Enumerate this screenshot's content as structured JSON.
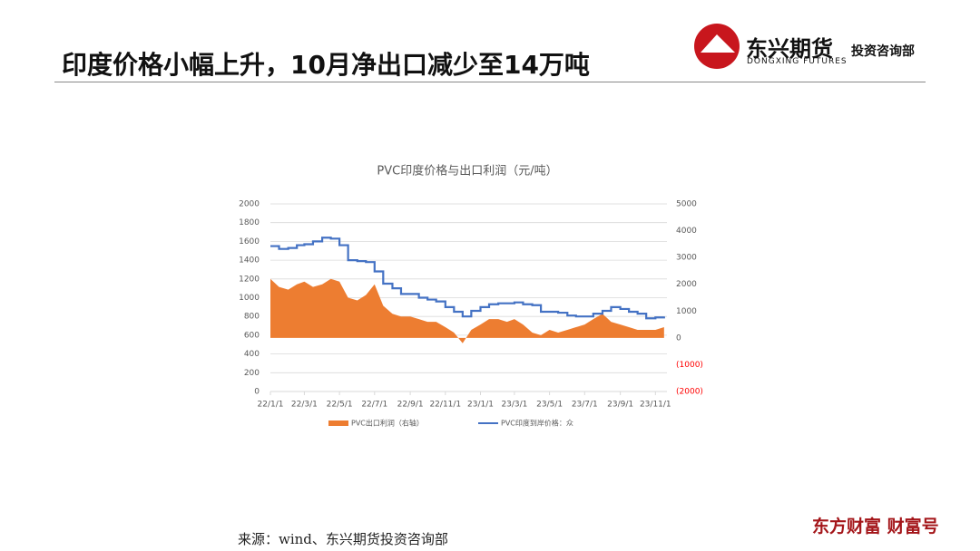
{
  "header": {
    "title": "印度价格小幅上升，10月净出口减少至14万吨",
    "logo_name": "东兴期货",
    "logo_en": "DONGXING FUTURES",
    "department": "投资咨询部"
  },
  "footer": {
    "source": "来源：wind、东兴期货投资咨询部",
    "watermark": "东方财富 财富号"
  },
  "chart_data": {
    "type": "line",
    "title": "PVC印度价格与出口利润（元/吨）",
    "x": [
      "22/1/1",
      "22/1/16",
      "22/2/1",
      "22/2/16",
      "22/3/1",
      "22/3/16",
      "22/4/1",
      "22/4/16",
      "22/5/1",
      "22/5/16",
      "22/6/1",
      "22/6/16",
      "22/7/1",
      "22/7/16",
      "22/8/1",
      "22/8/16",
      "22/9/1",
      "22/9/16",
      "22/10/1",
      "22/10/16",
      "22/11/1",
      "22/11/16",
      "22/12/1",
      "22/12/16",
      "23/1/1",
      "23/1/16",
      "23/2/1",
      "23/2/16",
      "23/3/1",
      "23/3/16",
      "23/4/1",
      "23/4/16",
      "23/5/1",
      "23/5/16",
      "23/6/1",
      "23/6/16",
      "23/7/1",
      "23/7/16",
      "23/8/1",
      "23/8/16",
      "23/9/1",
      "23/9/16",
      "23/10/1",
      "23/10/16",
      "23/11/1",
      "23/11/16"
    ],
    "xlim": [
      "22/1/1",
      "23/11/21"
    ],
    "xticks": [
      "22/1/1",
      "22/3/1",
      "22/5/1",
      "22/7/1",
      "22/9/1",
      "22/11/1",
      "23/1/1",
      "23/3/1",
      "23/5/1",
      "23/7/1",
      "23/9/1",
      "23/11/1"
    ],
    "ylim": [
      0,
      2000
    ],
    "yticks": [
      0,
      200,
      400,
      600,
      800,
      1000,
      1200,
      1400,
      1600,
      1800,
      2000
    ],
    "y2lim": [
      -2000,
      5000
    ],
    "y2ticks": [
      {
        "value": -2000,
        "label": "(2000)"
      },
      {
        "value": -1000,
        "label": "(1000)"
      },
      0,
      1000,
      2000,
      3000,
      4000,
      5000
    ],
    "negative_tick_color": "#ff0000",
    "grid": true,
    "series": [
      {
        "name": "PVC出口利润（右轴）",
        "color": "#ed7d31",
        "kind": "area",
        "axis": "y2",
        "values": [
          2200,
          1900,
          1800,
          2000,
          2100,
          1900,
          2000,
          2200,
          2100,
          1500,
          1400,
          1600,
          2000,
          1200,
          900,
          800,
          800,
          700,
          600,
          600,
          400,
          200,
          -200,
          300,
          500,
          700,
          700,
          600,
          700,
          500,
          200,
          100,
          300,
          200,
          300,
          400,
          500,
          700,
          900,
          600,
          500,
          400,
          300,
          300,
          300,
          400
        ]
      },
      {
        "name": "PVC印度到岸价格：众",
        "color": "#4472c4",
        "kind": "line",
        "values": [
          1550,
          1520,
          1530,
          1560,
          1570,
          1600,
          1640,
          1630,
          1560,
          1400,
          1390,
          1380,
          1280,
          1150,
          1100,
          1040,
          1040,
          1000,
          980,
          960,
          900,
          850,
          800,
          860,
          900,
          930,
          940,
          940,
          950,
          930,
          920,
          850,
          850,
          840,
          810,
          800,
          800,
          830,
          860,
          900,
          880,
          850,
          830,
          780,
          790,
          800
        ]
      }
    ]
  }
}
